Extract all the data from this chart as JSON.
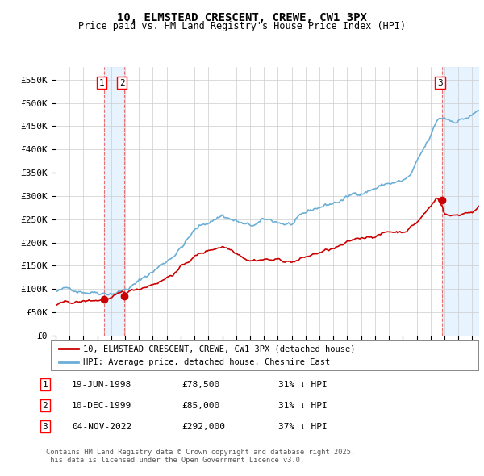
{
  "title": "10, ELMSTEAD CRESCENT, CREWE, CW1 3PX",
  "subtitle": "Price paid vs. HM Land Registry's House Price Index (HPI)",
  "ylabel_ticks": [
    "£0",
    "£50K",
    "£100K",
    "£150K",
    "£200K",
    "£250K",
    "£300K",
    "£350K",
    "£400K",
    "£450K",
    "£500K",
    "£550K"
  ],
  "ytick_vals": [
    0,
    50000,
    100000,
    150000,
    200000,
    250000,
    300000,
    350000,
    400000,
    450000,
    500000,
    550000
  ],
  "ylim": [
    0,
    578000
  ],
  "xlim_start": 1995.0,
  "xlim_end": 2025.5,
  "hpi_color": "#6baed6",
  "sale_color": "#cc0000",
  "dashed_color": "#e8a0a0",
  "shade_color": "#ddeeff",
  "sale_points": [
    {
      "year": 1998.46,
      "price": 78500,
      "label": "1"
    },
    {
      "year": 1999.93,
      "price": 85000,
      "label": "2"
    },
    {
      "year": 2022.84,
      "price": 292000,
      "label": "3"
    }
  ],
  "legend_entries": [
    "10, ELMSTEAD CRESCENT, CREWE, CW1 3PX (detached house)",
    "HPI: Average price, detached house, Cheshire East"
  ],
  "table_rows": [
    {
      "num": "1",
      "date": "19-JUN-1998",
      "price": "£78,500",
      "pct": "31% ↓ HPI"
    },
    {
      "num": "2",
      "date": "10-DEC-1999",
      "price": "£85,000",
      "pct": "31% ↓ HPI"
    },
    {
      "num": "3",
      "date": "04-NOV-2022",
      "price": "£292,000",
      "pct": "37% ↓ HPI"
    }
  ],
  "footnote": "Contains HM Land Registry data © Crown copyright and database right 2025.\nThis data is licensed under the Open Government Licence v3.0.",
  "background_color": "#ffffff",
  "grid_color": "#cccccc"
}
